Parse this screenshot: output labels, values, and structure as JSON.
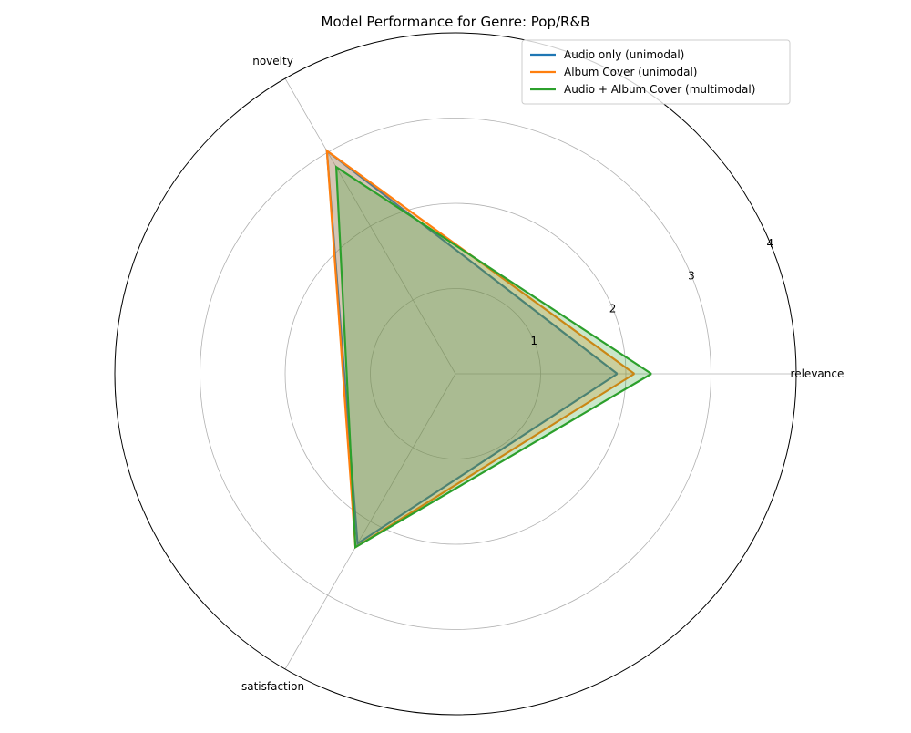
{
  "chart_data": {
    "type": "radar",
    "title": "Model Performance for Genre: Pop/R&B",
    "axes": [
      "relevance",
      "novelty",
      "satisfaction"
    ],
    "rlim": [
      0,
      4
    ],
    "rticks": [
      "1",
      "2",
      "3",
      "4"
    ],
    "grid": true,
    "legend_position": "top-right",
    "series": [
      {
        "name": "Audio only (unimodal)",
        "color": "#1f77b4",
        "values": [
          1.9,
          3.02,
          2.3
        ]
      },
      {
        "name": "Album Cover (unimodal)",
        "color": "#ff7f0e",
        "values": [
          2.1,
          3.02,
          2.35
        ]
      },
      {
        "name": "Audio + Album Cover (multimodal)",
        "color": "#2ca02c",
        "values": [
          2.3,
          2.8,
          2.35
        ]
      }
    ]
  }
}
